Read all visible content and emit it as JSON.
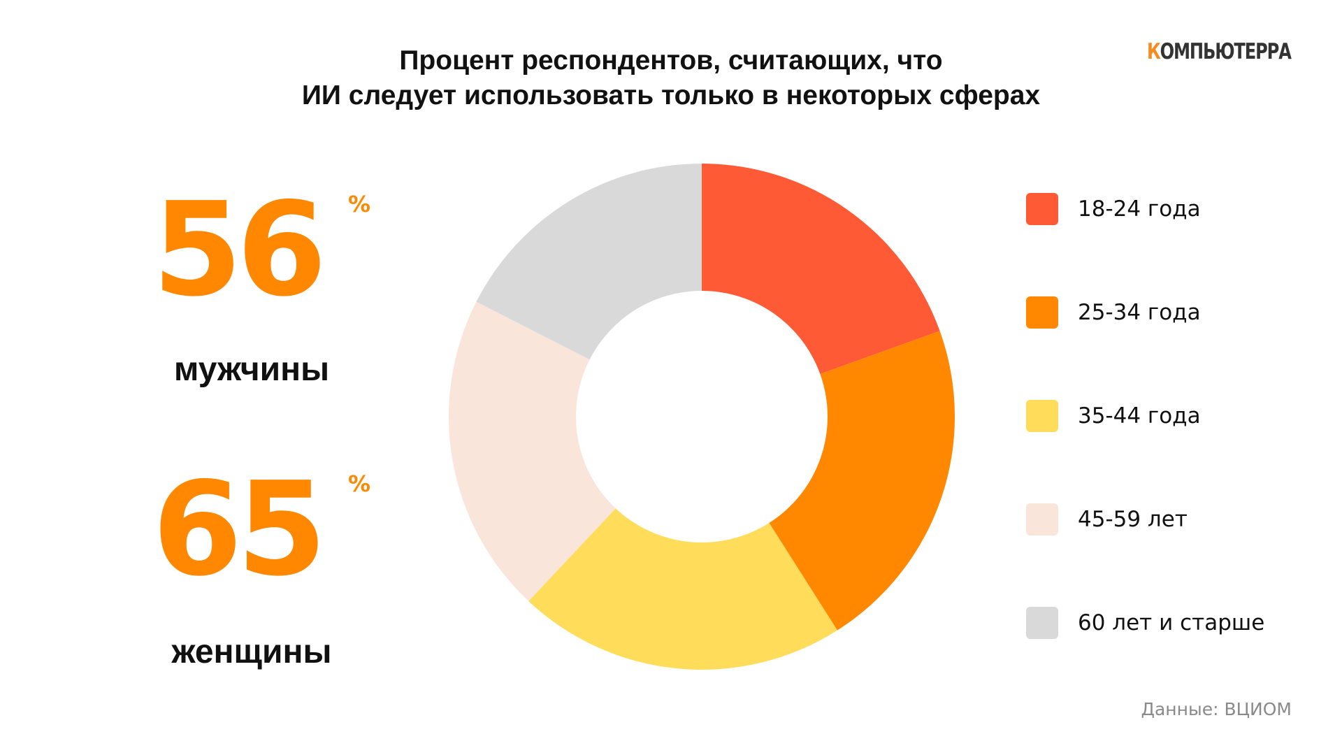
{
  "header": {
    "title_line1": "Процент респондентов, считающих, что",
    "title_line2": "ИИ следует использовать только в некоторых сферах"
  },
  "brand": {
    "logo_first_letter": "К",
    "logo_rest": "ОМПЬЮТЕРРА",
    "accent_color": "#F68B1F"
  },
  "stats": {
    "men": {
      "value": "56",
      "unit": "%",
      "label": "мужчины"
    },
    "women": {
      "value": "65",
      "unit": "%",
      "label": "женщины"
    }
  },
  "chart_data": {
    "type": "pie",
    "donut": true,
    "start": "top",
    "direction": "clockwise",
    "slices": [
      {
        "label": "18-24 года",
        "value": 19.5,
        "color": "#FF5A36"
      },
      {
        "label": "25-34 года",
        "value": 21.5,
        "color": "#FF8800"
      },
      {
        "label": "35-44 года",
        "value": 21.0,
        "color": "#FFDD5A"
      },
      {
        "label": "45-59 лет",
        "value": 20.5,
        "color": "#FAE5DA"
      },
      {
        "label": "60 лет и старше",
        "value": 17.5,
        "color": "#D9D9D9"
      }
    ],
    "legend_position": "right"
  },
  "footer": {
    "source": "Данные: ВЦИОМ"
  }
}
